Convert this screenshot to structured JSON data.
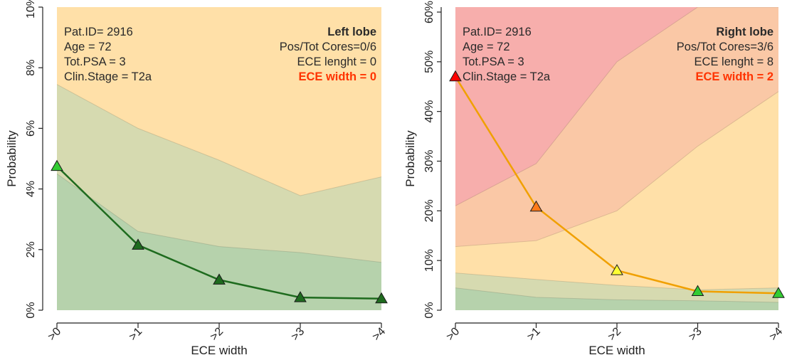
{
  "chart_data": [
    {
      "type": "line",
      "title": "Left lobe",
      "xlabel": "ECE width",
      "ylabel": "Probability",
      "categories": [
        ">0",
        ">1",
        ">2",
        ">3",
        ">4"
      ],
      "ylim": [
        0,
        10
      ],
      "yticks": [
        "0%",
        "2%",
        "4%",
        "6%",
        "8%",
        "10%"
      ],
      "info_left": [
        "Pat.ID= 2916",
        "Age = 72",
        "Tot.PSA = 3",
        "Clin.Stage = T2a"
      ],
      "info_right": [
        "Pos/Tot Cores=0/6",
        "ECE lenght = 0"
      ],
      "highlight": "ECE width = 0",
      "series": [
        {
          "values": [
            4.75,
            2.15,
            1.0,
            0.42,
            0.38
          ],
          "point_colors": [
            "#33cc33",
            "#1e6b1e",
            "#1e6b1e",
            "#1e6b1e",
            "#1e6b1e"
          ]
        }
      ],
      "bands": [
        {
          "values": [
            10,
            10,
            10,
            10,
            10
          ],
          "fill": "#ffe0a8"
        },
        {
          "values": [
            7.45,
            6.0,
            4.95,
            3.78,
            4.4
          ],
          "fill": "#d6dab0"
        },
        {
          "values": [
            4.5,
            2.6,
            2.1,
            1.9,
            1.58
          ],
          "fill": "#b6d2ac"
        }
      ],
      "colors": {
        "line": "#1e6b1e",
        "highlight": "#ff3300"
      }
    },
    {
      "type": "line",
      "title": "Right lobe",
      "xlabel": "ECE width",
      "ylabel": "Probability",
      "categories": [
        ">0",
        ">1",
        ">2",
        ">3",
        ">4"
      ],
      "ylim": [
        0,
        61
      ],
      "yticks": [
        "0%",
        "10%",
        "20%",
        "30%",
        "40%",
        "50%",
        "60%"
      ],
      "info_left": [
        "Pat.ID= 2916",
        "Age = 72",
        "Tot.PSA = 3",
        "Clin.Stage = T2a"
      ],
      "info_right": [
        "Pos/Tot Cores=3/6",
        "ECE lenght = 8"
      ],
      "highlight": "ECE width = 2",
      "series": [
        {
          "values": [
            47,
            20.8,
            8.0,
            3.8,
            3.4
          ],
          "point_colors": [
            "#ff0000",
            "#ff7a1a",
            "#ffff33",
            "#33cc33",
            "#33cc33"
          ]
        }
      ],
      "bands": [
        {
          "values": [
            61,
            61,
            61,
            61,
            61
          ],
          "fill": "#f7aeac"
        },
        {
          "values": [
            21.0,
            29.5,
            50.0,
            61,
            61
          ],
          "fill": "#fac8a6"
        },
        {
          "values": [
            12.8,
            14.0,
            20.0,
            33.0,
            44.0
          ],
          "fill": "#ffe0a8"
        },
        {
          "values": [
            7.5,
            6.2,
            5.0,
            4.1,
            4.5
          ],
          "fill": "#d6dab0"
        },
        {
          "values": [
            4.5,
            2.6,
            2.1,
            1.9,
            1.58
          ],
          "fill": "#b6d2ac"
        }
      ],
      "colors": {
        "line": "#f0a000",
        "highlight": "#ff3300"
      }
    }
  ]
}
